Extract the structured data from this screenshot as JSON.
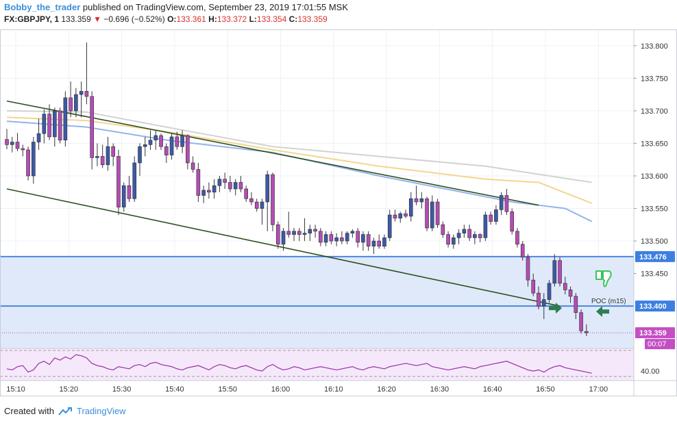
{
  "header": {
    "author": "Bobby_the_trader",
    "published_text": "published on TradingView.com, September 23, 2019 17:01:55 MSK",
    "symbol": "FX:GBPJPY, 1",
    "last_price": "133.359",
    "change_arrow": "▼",
    "change": "−0.696 (−0.52%)",
    "o_label": "O:",
    "o_value": "133.361",
    "h_label": "H:",
    "h_value": "133.372",
    "l_label": "L:",
    "l_value": "133.354",
    "c_label": "C:",
    "c_value": "133.359"
  },
  "footer": {
    "created_with": "Created with",
    "brand": "TradingView"
  },
  "colors": {
    "bull": "#3e5aa6",
    "bear": "#b44db4",
    "zone_fill": "#dfe9f9",
    "zone_line": "#4b86e0",
    "channel": "#2c4f1e",
    "ma_gray": "#d2d2d2",
    "ma_yellow": "#f5d58e",
    "ma_blue": "#94b3ec",
    "arrow": "#2e7d4f",
    "thumb": "#39c45a",
    "price_label_bg": "#c44ec4",
    "level_label_bg": "#3d7fe0"
  },
  "chart_data": {
    "type": "candlestick",
    "instrument": "FX:GBPJPY",
    "interval": "1",
    "x_tick_labels": [
      "15:10",
      "15:20",
      "15:30",
      "15:40",
      "15:50",
      "16:00",
      "16:10",
      "16:20",
      "16:30",
      "16:40",
      "16:50",
      "17:00"
    ],
    "y_tick_labels": [
      "133.800",
      "133.750",
      "133.700",
      "133.650",
      "133.600",
      "133.550",
      "133.500",
      "133.450"
    ],
    "ylim": [
      133.335,
      133.825
    ],
    "price_labels": {
      "current": "133.359",
      "countdown": "00:07"
    },
    "zone": {
      "top": 133.476,
      "bottom": 133.4,
      "top_label": "133.476",
      "bottom_label": "133.400"
    },
    "annotations": {
      "poc_label": "POC (m15)",
      "thumb_icon": "thumbs-down-icon",
      "arrows": "left-right-arrows"
    },
    "candles": [
      {
        "o": 133.656,
        "h": 133.672,
        "l": 133.641,
        "c": 133.648
      },
      {
        "o": 133.648,
        "h": 133.66,
        "l": 133.636,
        "c": 133.652
      },
      {
        "o": 133.652,
        "h": 133.666,
        "l": 133.638,
        "c": 133.642
      },
      {
        "o": 133.642,
        "h": 133.648,
        "l": 133.63,
        "c": 133.64
      },
      {
        "o": 133.64,
        "h": 133.645,
        "l": 133.593,
        "c": 133.6
      },
      {
        "o": 133.6,
        "h": 133.66,
        "l": 133.588,
        "c": 133.652
      },
      {
        "o": 133.652,
        "h": 133.688,
        "l": 133.64,
        "c": 133.665
      },
      {
        "o": 133.665,
        "h": 133.702,
        "l": 133.65,
        "c": 133.695
      },
      {
        "o": 133.695,
        "h": 133.71,
        "l": 133.655,
        "c": 133.66
      },
      {
        "o": 133.66,
        "h": 133.705,
        "l": 133.645,
        "c": 133.7
      },
      {
        "o": 133.7,
        "h": 133.705,
        "l": 133.65,
        "c": 133.655
      },
      {
        "o": 133.655,
        "h": 133.73,
        "l": 133.645,
        "c": 133.72
      },
      {
        "o": 133.72,
        "h": 133.745,
        "l": 133.69,
        "c": 133.7
      },
      {
        "o": 133.7,
        "h": 133.735,
        "l": 133.69,
        "c": 133.725
      },
      {
        "o": 133.725,
        "h": 133.745,
        "l": 133.69,
        "c": 133.73
      },
      {
        "o": 133.73,
        "h": 133.805,
        "l": 133.71,
        "c": 133.722
      },
      {
        "o": 133.722,
        "h": 133.73,
        "l": 133.61,
        "c": 133.628
      },
      {
        "o": 133.628,
        "h": 133.65,
        "l": 133.615,
        "c": 133.63
      },
      {
        "o": 133.63,
        "h": 133.648,
        "l": 133.612,
        "c": 133.617
      },
      {
        "o": 133.617,
        "h": 133.66,
        "l": 133.608,
        "c": 133.645
      },
      {
        "o": 133.645,
        "h": 133.65,
        "l": 133.615,
        "c": 133.63
      },
      {
        "o": 133.63,
        "h": 133.64,
        "l": 133.54,
        "c": 133.552
      },
      {
        "o": 133.552,
        "h": 133.59,
        "l": 133.545,
        "c": 133.585
      },
      {
        "o": 133.585,
        "h": 133.6,
        "l": 133.56,
        "c": 133.565
      },
      {
        "o": 133.565,
        "h": 133.63,
        "l": 133.56,
        "c": 133.62
      },
      {
        "o": 133.62,
        "h": 133.65,
        "l": 133.6,
        "c": 133.645
      },
      {
        "o": 133.645,
        "h": 133.66,
        "l": 133.63,
        "c": 133.648
      },
      {
        "o": 133.648,
        "h": 133.67,
        "l": 133.64,
        "c": 133.655
      },
      {
        "o": 133.655,
        "h": 133.67,
        "l": 133.64,
        "c": 133.662
      },
      {
        "o": 133.662,
        "h": 133.665,
        "l": 133.64,
        "c": 133.645
      },
      {
        "o": 133.645,
        "h": 133.65,
        "l": 133.62,
        "c": 133.632
      },
      {
        "o": 133.632,
        "h": 133.665,
        "l": 133.625,
        "c": 133.66
      },
      {
        "o": 133.66,
        "h": 133.668,
        "l": 133.64,
        "c": 133.645
      },
      {
        "o": 133.645,
        "h": 133.67,
        "l": 133.635,
        "c": 133.662
      },
      {
        "o": 133.662,
        "h": 133.664,
        "l": 133.61,
        "c": 133.62
      },
      {
        "o": 133.62,
        "h": 133.63,
        "l": 133.605,
        "c": 133.61
      },
      {
        "o": 133.61,
        "h": 133.62,
        "l": 133.56,
        "c": 133.57
      },
      {
        "o": 133.57,
        "h": 133.585,
        "l": 133.558,
        "c": 133.578
      },
      {
        "o": 133.578,
        "h": 133.59,
        "l": 133.565,
        "c": 133.575
      },
      {
        "o": 133.575,
        "h": 133.595,
        "l": 133.565,
        "c": 133.585
      },
      {
        "o": 133.585,
        "h": 133.6,
        "l": 133.575,
        "c": 133.595
      },
      {
        "o": 133.595,
        "h": 133.605,
        "l": 133.58,
        "c": 133.59
      },
      {
        "o": 133.59,
        "h": 133.6,
        "l": 133.575,
        "c": 133.58
      },
      {
        "o": 133.58,
        "h": 133.595,
        "l": 133.57,
        "c": 133.59
      },
      {
        "o": 133.59,
        "h": 133.6,
        "l": 133.575,
        "c": 133.58
      },
      {
        "o": 133.58,
        "h": 133.585,
        "l": 133.56,
        "c": 133.565
      },
      {
        "o": 133.565,
        "h": 133.575,
        "l": 133.555,
        "c": 133.56
      },
      {
        "o": 133.56,
        "h": 133.565,
        "l": 133.545,
        "c": 133.55
      },
      {
        "o": 133.55,
        "h": 133.565,
        "l": 133.525,
        "c": 133.56
      },
      {
        "o": 133.56,
        "h": 133.608,
        "l": 133.515,
        "c": 133.602
      },
      {
        "o": 133.602,
        "h": 133.605,
        "l": 133.515,
        "c": 133.525
      },
      {
        "o": 133.525,
        "h": 133.53,
        "l": 133.488,
        "c": 133.495
      },
      {
        "o": 133.495,
        "h": 133.52,
        "l": 133.485,
        "c": 133.515
      },
      {
        "o": 133.515,
        "h": 133.545,
        "l": 133.505,
        "c": 133.51
      },
      {
        "o": 133.51,
        "h": 133.52,
        "l": 133.5,
        "c": 133.515
      },
      {
        "o": 133.515,
        "h": 133.52,
        "l": 133.5,
        "c": 133.51
      },
      {
        "o": 133.51,
        "h": 133.535,
        "l": 133.5,
        "c": 133.512
      },
      {
        "o": 133.512,
        "h": 133.525,
        "l": 133.5,
        "c": 133.518
      },
      {
        "o": 133.518,
        "h": 133.525,
        "l": 133.505,
        "c": 133.515
      },
      {
        "o": 133.515,
        "h": 133.52,
        "l": 133.492,
        "c": 133.498
      },
      {
        "o": 133.498,
        "h": 133.515,
        "l": 133.492,
        "c": 133.51
      },
      {
        "o": 133.51,
        "h": 133.515,
        "l": 133.495,
        "c": 133.5
      },
      {
        "o": 133.5,
        "h": 133.512,
        "l": 133.492,
        "c": 133.505
      },
      {
        "o": 133.505,
        "h": 133.515,
        "l": 133.495,
        "c": 133.5
      },
      {
        "o": 133.5,
        "h": 133.515,
        "l": 133.495,
        "c": 133.512
      },
      {
        "o": 133.512,
        "h": 133.518,
        "l": 133.505,
        "c": 133.515
      },
      {
        "o": 133.515,
        "h": 133.52,
        "l": 133.49,
        "c": 133.498
      },
      {
        "o": 133.498,
        "h": 133.515,
        "l": 133.485,
        "c": 133.51
      },
      {
        "o": 133.51,
        "h": 133.515,
        "l": 133.485,
        "c": 133.492
      },
      {
        "o": 133.492,
        "h": 133.505,
        "l": 133.48,
        "c": 133.5
      },
      {
        "o": 133.5,
        "h": 133.51,
        "l": 133.488,
        "c": 133.492
      },
      {
        "o": 133.492,
        "h": 133.51,
        "l": 133.488,
        "c": 133.505
      },
      {
        "o": 133.505,
        "h": 133.548,
        "l": 133.5,
        "c": 133.54
      },
      {
        "o": 133.54,
        "h": 133.548,
        "l": 133.53,
        "c": 133.535
      },
      {
        "o": 133.535,
        "h": 133.545,
        "l": 133.528,
        "c": 133.542
      },
      {
        "o": 133.542,
        "h": 133.548,
        "l": 133.535,
        "c": 133.538
      },
      {
        "o": 133.538,
        "h": 133.575,
        "l": 133.53,
        "c": 133.565
      },
      {
        "o": 133.565,
        "h": 133.585,
        "l": 133.555,
        "c": 133.56
      },
      {
        "o": 133.56,
        "h": 133.575,
        "l": 133.55,
        "c": 133.565
      },
      {
        "o": 133.565,
        "h": 133.568,
        "l": 133.515,
        "c": 133.52
      },
      {
        "o": 133.52,
        "h": 133.57,
        "l": 133.515,
        "c": 133.56
      },
      {
        "o": 133.56,
        "h": 133.565,
        "l": 133.52,
        "c": 133.525
      },
      {
        "o": 133.525,
        "h": 133.53,
        "l": 133.505,
        "c": 133.51
      },
      {
        "o": 133.51,
        "h": 133.515,
        "l": 133.49,
        "c": 133.495
      },
      {
        "o": 133.495,
        "h": 133.51,
        "l": 133.488,
        "c": 133.505
      },
      {
        "o": 133.505,
        "h": 133.518,
        "l": 133.495,
        "c": 133.512
      },
      {
        "o": 133.512,
        "h": 133.525,
        "l": 133.505,
        "c": 133.518
      },
      {
        "o": 133.518,
        "h": 133.525,
        "l": 133.5,
        "c": 133.505
      },
      {
        "o": 133.505,
        "h": 133.515,
        "l": 133.495,
        "c": 133.51
      },
      {
        "o": 133.51,
        "h": 133.512,
        "l": 133.498,
        "c": 133.505
      },
      {
        "o": 133.505,
        "h": 133.545,
        "l": 133.5,
        "c": 133.54
      },
      {
        "o": 133.54,
        "h": 133.545,
        "l": 133.525,
        "c": 133.53
      },
      {
        "o": 133.53,
        "h": 133.555,
        "l": 133.525,
        "c": 133.548
      },
      {
        "o": 133.548,
        "h": 133.575,
        "l": 133.54,
        "c": 133.57
      },
      {
        "o": 133.57,
        "h": 133.58,
        "l": 133.54,
        "c": 133.545
      },
      {
        "o": 133.545,
        "h": 133.55,
        "l": 133.51,
        "c": 133.515
      },
      {
        "o": 133.515,
        "h": 133.52,
        "l": 133.49,
        "c": 133.495
      },
      {
        "o": 133.495,
        "h": 133.5,
        "l": 133.47,
        "c": 133.475
      },
      {
        "o": 133.475,
        "h": 133.48,
        "l": 133.43,
        "c": 133.44
      },
      {
        "o": 133.44,
        "h": 133.45,
        "l": 133.415,
        "c": 133.42
      },
      {
        "o": 133.42,
        "h": 133.43,
        "l": 133.395,
        "c": 133.4
      },
      {
        "o": 133.4,
        "h": 133.42,
        "l": 133.38,
        "c": 133.41
      },
      {
        "o": 133.41,
        "h": 133.44,
        "l": 133.405,
        "c": 133.435
      },
      {
        "o": 133.435,
        "h": 133.48,
        "l": 133.43,
        "c": 133.47
      },
      {
        "o": 133.47,
        "h": 133.475,
        "l": 133.43,
        "c": 133.435
      },
      {
        "o": 133.435,
        "h": 133.445,
        "l": 133.418,
        "c": 133.425
      },
      {
        "o": 133.425,
        "h": 133.43,
        "l": 133.405,
        "c": 133.415
      },
      {
        "o": 133.415,
        "h": 133.42,
        "l": 133.38,
        "c": 133.39
      },
      {
        "o": 133.39,
        "h": 133.395,
        "l": 133.358,
        "c": 133.362
      },
      {
        "o": 133.361,
        "h": 133.372,
        "l": 133.354,
        "c": 133.359
      }
    ],
    "moving_averages": [
      {
        "color": "#d2d2d2",
        "points": [
          {
            "i": 0,
            "v": 133.7
          },
          {
            "i": 15,
            "v": 133.698
          },
          {
            "i": 30,
            "v": 133.675
          },
          {
            "i": 50,
            "v": 133.645
          },
          {
            "i": 70,
            "v": 133.63
          },
          {
            "i": 90,
            "v": 133.615
          },
          {
            "i": 110,
            "v": 133.59
          }
        ]
      },
      {
        "color": "#f5d58e",
        "points": [
          {
            "i": 0,
            "v": 133.69
          },
          {
            "i": 15,
            "v": 133.685
          },
          {
            "i": 30,
            "v": 133.668
          },
          {
            "i": 50,
            "v": 133.64
          },
          {
            "i": 70,
            "v": 133.615
          },
          {
            "i": 90,
            "v": 133.595
          },
          {
            "i": 100,
            "v": 133.59
          },
          {
            "i": 110,
            "v": 133.558
          }
        ]
      },
      {
        "color": "#94b3ec",
        "points": [
          {
            "i": 0,
            "v": 133.684
          },
          {
            "i": 15,
            "v": 133.675
          },
          {
            "i": 30,
            "v": 133.655
          },
          {
            "i": 50,
            "v": 133.636
          },
          {
            "i": 70,
            "v": 133.6
          },
          {
            "i": 95,
            "v": 133.56
          },
          {
            "i": 105,
            "v": 133.55
          },
          {
            "i": 110,
            "v": 133.53
          }
        ]
      }
    ],
    "trendlines": [
      {
        "name": "channel-upper-line",
        "i1": 0,
        "v1": 133.715,
        "i2": 100,
        "v2": 133.555
      },
      {
        "name": "channel-lower-line",
        "i1": 0,
        "v1": 133.58,
        "i2": 104,
        "v2": 133.4
      }
    ],
    "oscillator": {
      "label": "40.00",
      "values": [
        45,
        44,
        47,
        48,
        42,
        44,
        50,
        52,
        49,
        55,
        53,
        56,
        54,
        58,
        57,
        55,
        50,
        48,
        47,
        45,
        44,
        47,
        46,
        45,
        48,
        49,
        47,
        50,
        51,
        49,
        48,
        47,
        45,
        44,
        46,
        47,
        48,
        46,
        44,
        47,
        49,
        48,
        46,
        45,
        47,
        48,
        46,
        44,
        43,
        47,
        49,
        46,
        44,
        45,
        47,
        46,
        44,
        45,
        46,
        47,
        46,
        45,
        44,
        45,
        46,
        47,
        45,
        44,
        46,
        47,
        46,
        45,
        47,
        48,
        49,
        50,
        49,
        48,
        49,
        50,
        47,
        46,
        45,
        44,
        45,
        46,
        47,
        46,
        45,
        47,
        48,
        49,
        50,
        51,
        52,
        50,
        48,
        46,
        44,
        43,
        44,
        42,
        45,
        47,
        48,
        46,
        45,
        44,
        43,
        42,
        41
      ]
    }
  }
}
